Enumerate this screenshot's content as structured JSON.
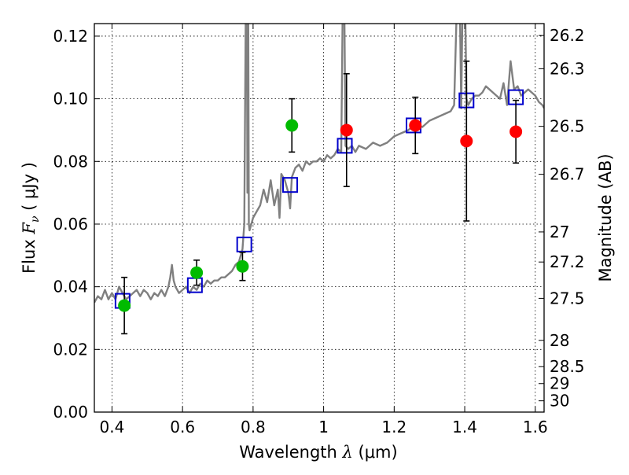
{
  "chart_data": {
    "type": "scatter",
    "xlim": [
      0.35,
      1.625
    ],
    "ylim": [
      0.0,
      0.124
    ],
    "grid": true,
    "xlabel": {
      "prefix": "Wavelength  ",
      "symbol": "λ",
      "unit": " (μm)"
    },
    "ylabel": {
      "prefix": "Flux  ",
      "symbol": "F",
      "subscript": "ν",
      "unit": "  ( μJy )"
    },
    "y2label": "Magnitude (AB)",
    "x_ticks": [
      0.4,
      0.6,
      0.8,
      1.0,
      1.2,
      1.4,
      1.6
    ],
    "x_tick_labels": [
      "0.4",
      "0.6",
      "0.8",
      "1",
      "1.2",
      "1.4",
      "1.6"
    ],
    "y_ticks": [
      0.0,
      0.02,
      0.04,
      0.06,
      0.08,
      0.1,
      0.12
    ],
    "y_tick_labels": [
      "0.00",
      "0.02",
      "0.04",
      "0.06",
      "0.08",
      "0.10",
      "0.12"
    ],
    "mag_ticks": [
      {
        "label": "26.2",
        "flux": 0.1202
      },
      {
        "label": "26.3",
        "flux": 0.1096
      },
      {
        "label": "26.5",
        "flux": 0.0912
      },
      {
        "label": "26.7",
        "flux": 0.0759
      },
      {
        "label": "27",
        "flux": 0.0575
      },
      {
        "label": "27.2",
        "flux": 0.0479
      },
      {
        "label": "27.5",
        "flux": 0.0363
      },
      {
        "label": "28",
        "flux": 0.0229
      },
      {
        "label": "28.5",
        "flux": 0.0145
      },
      {
        "label": "29",
        "flux": 0.0091
      },
      {
        "label": "30",
        "flux": 0.0036
      }
    ],
    "series": [
      {
        "color": "#808080",
        "kind": "line",
        "x": [
          0.35,
          0.36,
          0.37,
          0.38,
          0.39,
          0.4,
          0.41,
          0.42,
          0.43,
          0.44,
          0.45,
          0.46,
          0.47,
          0.48,
          0.49,
          0.5,
          0.51,
          0.52,
          0.53,
          0.54,
          0.55,
          0.56,
          0.565,
          0.57,
          0.575,
          0.58,
          0.59,
          0.6,
          0.61,
          0.62,
          0.63,
          0.64,
          0.65,
          0.66,
          0.67,
          0.68,
          0.69,
          0.7,
          0.71,
          0.72,
          0.73,
          0.74,
          0.75,
          0.76,
          0.77,
          0.775,
          0.78,
          0.782,
          0.784,
          0.786,
          0.788,
          0.79,
          0.8,
          0.81,
          0.82,
          0.83,
          0.84,
          0.85,
          0.86,
          0.87,
          0.875,
          0.88,
          0.89,
          0.9,
          0.905,
          0.91,
          0.92,
          0.93,
          0.94,
          0.95,
          0.96,
          0.97,
          0.98,
          0.99,
          1.0,
          1.01,
          1.02,
          1.03,
          1.04,
          1.05,
          1.055,
          1.058,
          1.062,
          1.07,
          1.08,
          1.09,
          1.1,
          1.12,
          1.14,
          1.16,
          1.18,
          1.2,
          1.22,
          1.24,
          1.26,
          1.28,
          1.3,
          1.32,
          1.34,
          1.36,
          1.37,
          1.38,
          1.385,
          1.39,
          1.395,
          1.4,
          1.405,
          1.41,
          1.42,
          1.43,
          1.44,
          1.45,
          1.46,
          1.47,
          1.48,
          1.49,
          1.5,
          1.51,
          1.52,
          1.53,
          1.54,
          1.55,
          1.56,
          1.57,
          1.58,
          1.59,
          1.6,
          1.61,
          1.62,
          1.625
        ],
        "y": [
          0.035,
          0.037,
          0.036,
          0.039,
          0.036,
          0.038,
          0.036,
          0.04,
          0.038,
          0.036,
          0.037,
          0.038,
          0.039,
          0.037,
          0.039,
          0.038,
          0.036,
          0.038,
          0.037,
          0.039,
          0.037,
          0.04,
          0.043,
          0.047,
          0.042,
          0.04,
          0.038,
          0.039,
          0.04,
          0.038,
          0.04,
          0.039,
          0.041,
          0.04,
          0.042,
          0.041,
          0.042,
          0.042,
          0.043,
          0.043,
          0.044,
          0.045,
          0.047,
          0.048,
          0.052,
          0.06,
          0.14,
          0.14,
          0.07,
          0.14,
          0.06,
          0.058,
          0.062,
          0.064,
          0.066,
          0.071,
          0.067,
          0.074,
          0.066,
          0.071,
          0.062,
          0.076,
          0.074,
          0.07,
          0.065,
          0.075,
          0.078,
          0.079,
          0.077,
          0.08,
          0.079,
          0.08,
          0.08,
          0.081,
          0.08,
          0.082,
          0.081,
          0.082,
          0.084,
          0.083,
          0.14,
          0.14,
          0.085,
          0.084,
          0.085,
          0.083,
          0.085,
          0.084,
          0.086,
          0.085,
          0.086,
          0.088,
          0.089,
          0.09,
          0.092,
          0.091,
          0.093,
          0.094,
          0.095,
          0.096,
          0.098,
          0.14,
          0.14,
          0.097,
          0.14,
          0.14,
          0.1,
          0.098,
          0.1,
          0.101,
          0.101,
          0.102,
          0.104,
          0.103,
          0.102,
          0.101,
          0.1,
          0.105,
          0.098,
          0.112,
          0.103,
          0.104,
          0.101,
          0.102,
          0.103,
          0.102,
          0.101,
          0.099,
          0.098,
          0.097
        ]
      },
      {
        "color": "#0000cc",
        "kind": "open-square",
        "x": [
          0.43,
          0.635,
          0.775,
          0.905,
          1.06,
          1.255,
          1.405,
          1.545
        ],
        "y": [
          0.0355,
          0.0405,
          0.0535,
          0.0725,
          0.085,
          0.0915,
          0.0995,
          0.1005
        ]
      },
      {
        "color": "#00bb00",
        "kind": "filled-circle",
        "x": [
          0.435,
          0.64,
          0.77,
          0.91
        ],
        "y": [
          0.034,
          0.0445,
          0.0465,
          0.0915
        ],
        "err": [
          0.009,
          0.004,
          0.0045,
          0.0085
        ]
      },
      {
        "color": "#ff0000",
        "kind": "filled-circle",
        "x": [
          1.065,
          1.26,
          1.405,
          1.545
        ],
        "y": [
          0.09,
          0.0915,
          0.0865,
          0.0895
        ],
        "err": [
          0.018,
          0.009,
          0.0255,
          0.01
        ]
      }
    ]
  }
}
